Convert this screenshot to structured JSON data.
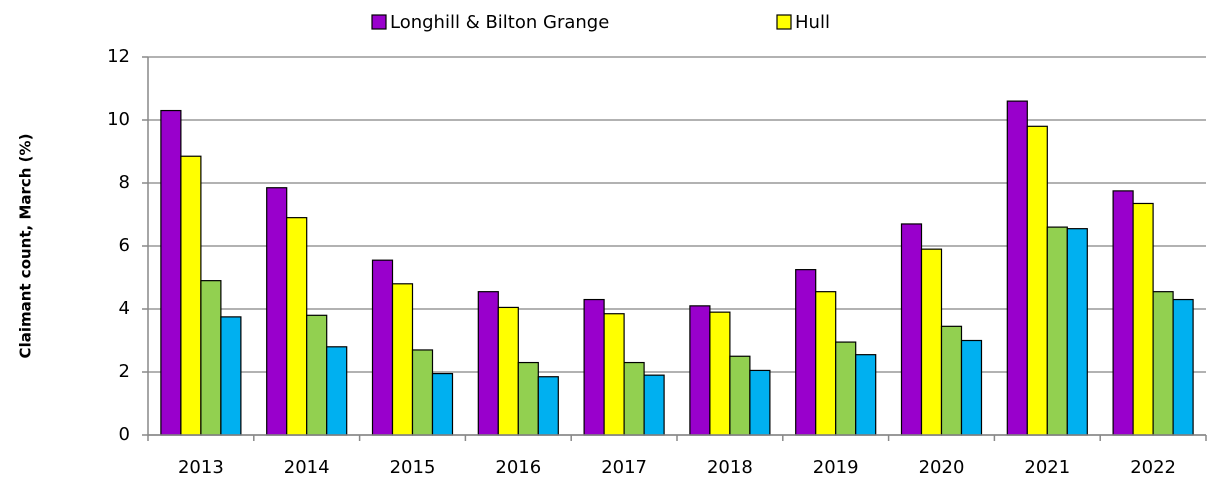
{
  "chart_data": {
    "type": "bar",
    "y_label": "Claimant count, March (%)",
    "categories": [
      "2013",
      "2014",
      "2015",
      "2016",
      "2017",
      "2018",
      "2019",
      "2020",
      "2021",
      "2022"
    ],
    "series": [
      {
        "name": "Longhill & Bilton Grange",
        "color": "#9900cc",
        "values": [
          10.3,
          7.85,
          5.55,
          4.55,
          4.3,
          4.1,
          5.25,
          6.7,
          10.6,
          7.75
        ]
      },
      {
        "name": "Hull",
        "color": "#ffff00",
        "values": [
          8.85,
          6.9,
          4.8,
          4.05,
          3.85,
          3.9,
          4.55,
          5.9,
          9.8,
          7.35
        ]
      },
      {
        "color": "#92d050",
        "values": [
          4.9,
          3.8,
          2.7,
          2.3,
          2.3,
          2.5,
          2.95,
          3.45,
          6.6,
          4.55
        ]
      },
      {
        "color": "#00b0f0",
        "values": [
          3.75,
          2.8,
          1.95,
          1.85,
          1.9,
          2.05,
          2.55,
          3.0,
          6.55,
          4.3
        ]
      }
    ],
    "ylim": [
      0,
      12
    ],
    "yticks": [
      0,
      2,
      4,
      6,
      8,
      10,
      12
    ],
    "grid": true,
    "legend": "top"
  }
}
